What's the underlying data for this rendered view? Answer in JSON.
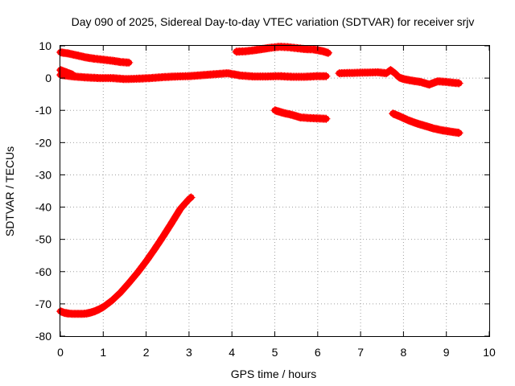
{
  "chart_data": {
    "type": "scatter",
    "title": "Day 090 of 2025, Sidereal Day-to-day VTEC variation (SDTVAR) for receiver srjv",
    "xlabel": "GPS time / hours",
    "ylabel": "SDTVAR / TECUs",
    "xlim": [
      0,
      10
    ],
    "ylim": [
      -80,
      10
    ],
    "xticks": [
      0,
      1,
      2,
      3,
      4,
      5,
      6,
      7,
      8,
      9,
      10
    ],
    "yticks": [
      10,
      0,
      -10,
      -20,
      -30,
      -40,
      -50,
      -60,
      -70,
      -80
    ],
    "grid": true,
    "marker": "plus",
    "color": "#ff0000",
    "series": [
      {
        "name": "arc-1",
        "x": [
          0.0,
          0.2,
          0.4,
          0.6,
          0.8,
          1.0,
          1.2,
          1.4,
          1.6
        ],
        "y": [
          8.0,
          7.6,
          7.0,
          6.4,
          6.0,
          5.7,
          5.4,
          5.0,
          4.8
        ]
      },
      {
        "name": "arc-2",
        "x": [
          0.0,
          0.1,
          0.2,
          0.3
        ],
        "y": [
          2.5,
          2.0,
          1.5,
          1.0
        ]
      },
      {
        "name": "arc-3",
        "x": [
          0.0,
          0.3,
          0.6,
          0.9,
          1.2,
          1.5,
          1.8,
          2.1,
          2.4,
          2.7,
          3.0,
          3.3,
          3.6,
          3.9,
          4.2,
          4.5,
          4.8,
          5.1,
          5.4,
          5.7,
          6.0,
          6.2
        ],
        "y": [
          1.0,
          0.5,
          0.2,
          0.0,
          0.0,
          -0.3,
          -0.2,
          0.0,
          0.3,
          0.5,
          0.6,
          0.9,
          1.2,
          1.5,
          0.8,
          0.5,
          0.5,
          0.6,
          0.4,
          0.4,
          0.6,
          0.6
        ]
      },
      {
        "name": "arc-4",
        "x": [
          0.0,
          0.1,
          0.2,
          0.3,
          0.4,
          0.5,
          0.6,
          0.7,
          0.8,
          0.9,
          1.0,
          1.2,
          1.4,
          1.6,
          1.8,
          2.0,
          2.2,
          2.4,
          2.6,
          2.8,
          3.0,
          3.05
        ],
        "y": [
          -72.3,
          -72.8,
          -73.0,
          -73.1,
          -73.1,
          -73.1,
          -73.0,
          -72.7,
          -72.3,
          -71.7,
          -71.0,
          -69.0,
          -66.5,
          -63.5,
          -60.3,
          -56.8,
          -53.0,
          -49.0,
          -44.8,
          -40.5,
          -37.5,
          -37.0
        ]
      },
      {
        "name": "arc-5",
        "x": [
          4.1,
          4.3,
          4.5,
          4.7,
          4.9,
          5.1,
          5.3,
          5.5,
          5.7,
          5.9,
          6.1,
          6.25
        ],
        "y": [
          8.2,
          8.3,
          8.6,
          9.0,
          9.4,
          9.7,
          9.6,
          9.3,
          9.0,
          8.9,
          8.4,
          7.8
        ]
      },
      {
        "name": "arc-6",
        "x": [
          5.0,
          5.2,
          5.4,
          5.6,
          5.8,
          6.0,
          6.2
        ],
        "y": [
          -10.0,
          -10.8,
          -11.4,
          -12.2,
          -12.4,
          -12.5,
          -12.6
        ]
      },
      {
        "name": "arc-7",
        "x": [
          6.5,
          6.8,
          7.1,
          7.4,
          7.6,
          7.7,
          7.8,
          7.9,
          8.0,
          8.2,
          8.4,
          8.6,
          8.8,
          9.0,
          9.2,
          9.3
        ],
        "y": [
          1.5,
          1.6,
          1.7,
          1.8,
          1.5,
          2.5,
          1.5,
          0.2,
          -0.3,
          -0.8,
          -1.2,
          -2.0,
          -1.0,
          -1.2,
          -1.5,
          -1.6
        ]
      },
      {
        "name": "arc-8",
        "x": [
          7.75,
          7.9,
          8.1,
          8.3,
          8.5,
          8.7,
          8.9,
          9.1,
          9.3
        ],
        "y": [
          -11.0,
          -11.8,
          -13.0,
          -14.0,
          -14.8,
          -15.6,
          -16.2,
          -16.6,
          -17.0
        ]
      }
    ]
  }
}
